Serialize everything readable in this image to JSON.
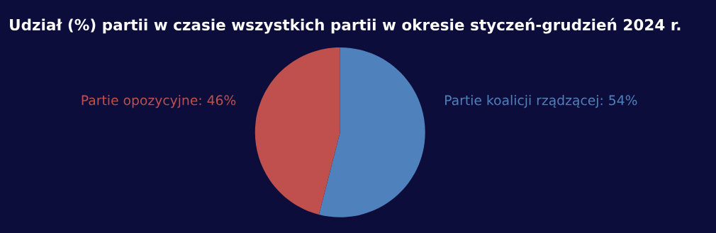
{
  "chart_data": {
    "type": "pie",
    "title": "Udział (%) partii w czasie wszystkich partii w okresie styczeń-grudzień 2024 r.",
    "categories": [
      "Partie koalicji rządzącej",
      "Partie opozycyjne"
    ],
    "values": [
      54,
      46
    ],
    "colors": [
      "#4f81bd",
      "#c0504d"
    ],
    "value_labels": [
      "54%",
      "46%"
    ],
    "legend": false
  }
}
